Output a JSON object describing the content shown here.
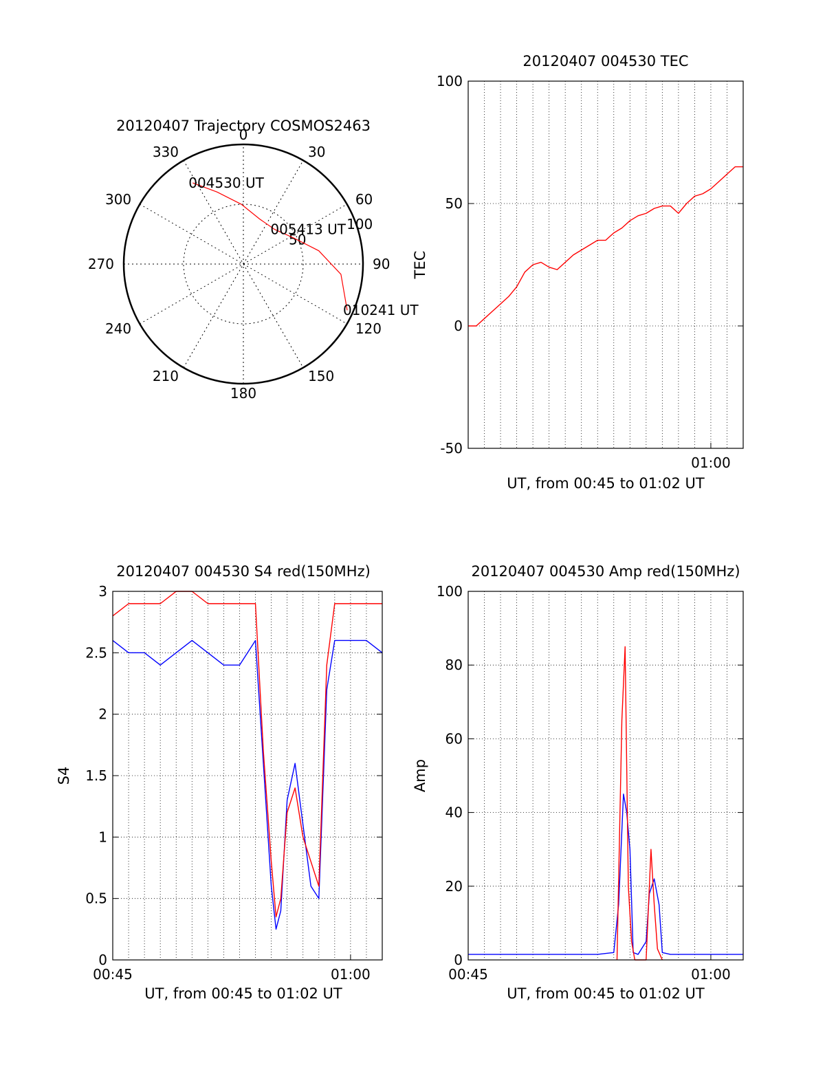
{
  "colors": {
    "red": "#ff0000",
    "blue": "#0000ff",
    "axis": "#000000",
    "grid": "#000000"
  },
  "chart_data": [
    {
      "type": "polar",
      "title": "20120407 Trajectory COSMOS2463",
      "azimuth_labels": [
        "0",
        "30",
        "60",
        "90",
        "120",
        "150",
        "180",
        "210",
        "240",
        "270",
        "300",
        "330"
      ],
      "radial_labels": [
        "50",
        "100"
      ],
      "grid": true,
      "series": [
        {
          "color": "red",
          "points": [
            {
              "az": 328,
              "r": 80
            },
            {
              "az": 340,
              "r": 64
            },
            {
              "az": 358,
              "r": 50
            },
            {
              "az": 20,
              "r": 40
            },
            {
              "az": 42,
              "r": 39
            },
            {
              "az": 62,
              "r": 47
            },
            {
              "az": 80,
              "r": 64
            },
            {
              "az": 96,
              "r": 82
            },
            {
              "az": 114,
              "r": 95
            }
          ]
        }
      ],
      "annotations": [
        {
          "text": "004530 UT",
          "az": 328,
          "r": 80
        },
        {
          "text": "005413 UT",
          "az": 42,
          "r": 39
        },
        {
          "text": "010241 UT",
          "az": 114,
          "r": 95
        }
      ]
    },
    {
      "type": "line",
      "title": "20120407 004530 TEC",
      "ylabel": "TEC",
      "xlabel": "UT, from 00:45 to 01:02 UT",
      "xlim": [
        0,
        17
      ],
      "ylim": [
        -50,
        100
      ],
      "yticks": [
        "100",
        "50",
        "0",
        "-50"
      ],
      "xticks": [
        {
          "label": "01:00",
          "x": 15
        }
      ],
      "grid": true,
      "series": [
        {
          "color": "red",
          "x": [
            0,
            0.5,
            1,
            1.5,
            2,
            2.5,
            3,
            3.5,
            4,
            4.5,
            5,
            5.5,
            6,
            6.5,
            7,
            7.5,
            8,
            8.5,
            9,
            9.5,
            10,
            10.5,
            11,
            11.5,
            12,
            12.5,
            13,
            13.5,
            14,
            14.5,
            15,
            15.5,
            16,
            16.5,
            17
          ],
          "y": [
            0,
            0,
            3,
            6,
            9,
            12,
            16,
            22,
            25,
            26,
            24,
            23,
            26,
            29,
            31,
            33,
            35,
            35,
            38,
            40,
            43,
            45,
            46,
            48,
            49,
            49,
            46,
            50,
            53,
            54,
            56,
            59,
            62,
            65,
            65
          ]
        }
      ]
    },
    {
      "type": "line",
      "title": "20120407 004530 S4 red(150MHz)",
      "ylabel": "S4",
      "xlabel": "UT, from 00:45 to 01:02 UT",
      "xlim": [
        0,
        17
      ],
      "ylim": [
        0,
        3
      ],
      "yticks": [
        "3",
        "2.5",
        "2",
        "1.5",
        "1",
        "0.5",
        "0"
      ],
      "xticks": [
        {
          "label": "00:45",
          "x": 0
        },
        {
          "label": "01:00",
          "x": 15
        }
      ],
      "grid": true,
      "series": [
        {
          "color": "blue",
          "x": [
            0,
            1,
            2,
            3,
            4,
            5,
            6,
            7,
            8,
            9,
            9.5,
            10,
            10.3,
            10.6,
            11,
            11.5,
            12,
            12.5,
            13,
            13.5,
            14,
            15,
            16,
            17
          ],
          "y": [
            2.6,
            2.5,
            2.5,
            2.4,
            2.5,
            2.6,
            2.5,
            2.4,
            2.4,
            2.6,
            1.6,
            0.6,
            0.25,
            0.4,
            1.3,
            1.6,
            1.1,
            0.6,
            0.5,
            2.2,
            2.6,
            2.6,
            2.6,
            2.5
          ]
        },
        {
          "color": "red",
          "x": [
            0,
            1,
            2,
            3,
            4,
            5,
            6,
            7,
            8,
            9,
            9.5,
            10,
            10.3,
            10.6,
            11,
            11.5,
            12,
            12.5,
            13,
            13.5,
            14,
            15,
            16,
            17
          ],
          "y": [
            2.8,
            2.9,
            2.9,
            2.9,
            3.0,
            3.0,
            2.9,
            2.9,
            2.9,
            2.9,
            1.7,
            0.8,
            0.35,
            0.5,
            1.2,
            1.4,
            1.0,
            0.8,
            0.6,
            2.4,
            2.9,
            2.9,
            2.9,
            2.9
          ]
        }
      ]
    },
    {
      "type": "line",
      "title": "20120407 004530 Amp red(150MHz)",
      "ylabel": "Amp",
      "xlabel": "UT, from 00:45 to 01:02 UT",
      "xlim": [
        0,
        17
      ],
      "ylim": [
        0,
        100
      ],
      "yticks": [
        "100",
        "80",
        "60",
        "40",
        "20",
        "0"
      ],
      "xticks": [
        {
          "label": "00:45",
          "x": 0
        },
        {
          "label": "01:00",
          "x": 15
        }
      ],
      "grid": true,
      "series": [
        {
          "color": "blue",
          "x": [
            0,
            2,
            4,
            6,
            8,
            9,
            9.3,
            9.6,
            9.8,
            10,
            10.2,
            10.5,
            11,
            11.2,
            11.5,
            11.8,
            12,
            12.5,
            14,
            17
          ],
          "y": [
            1.5,
            1.5,
            1.5,
            1.5,
            1.5,
            2,
            15,
            45,
            40,
            30,
            2,
            1.5,
            5,
            18,
            22,
            15,
            2,
            1.5,
            1.5,
            1.5
          ]
        },
        {
          "color": "red",
          "x": [
            9.2,
            9.5,
            9.7,
            9.9,
            10.1,
            10.3,
            11,
            11.3,
            11.5,
            11.7,
            12
          ],
          "y": [
            0,
            65,
            85,
            20,
            5,
            0,
            0,
            30,
            15,
            3,
            0
          ]
        }
      ]
    }
  ]
}
